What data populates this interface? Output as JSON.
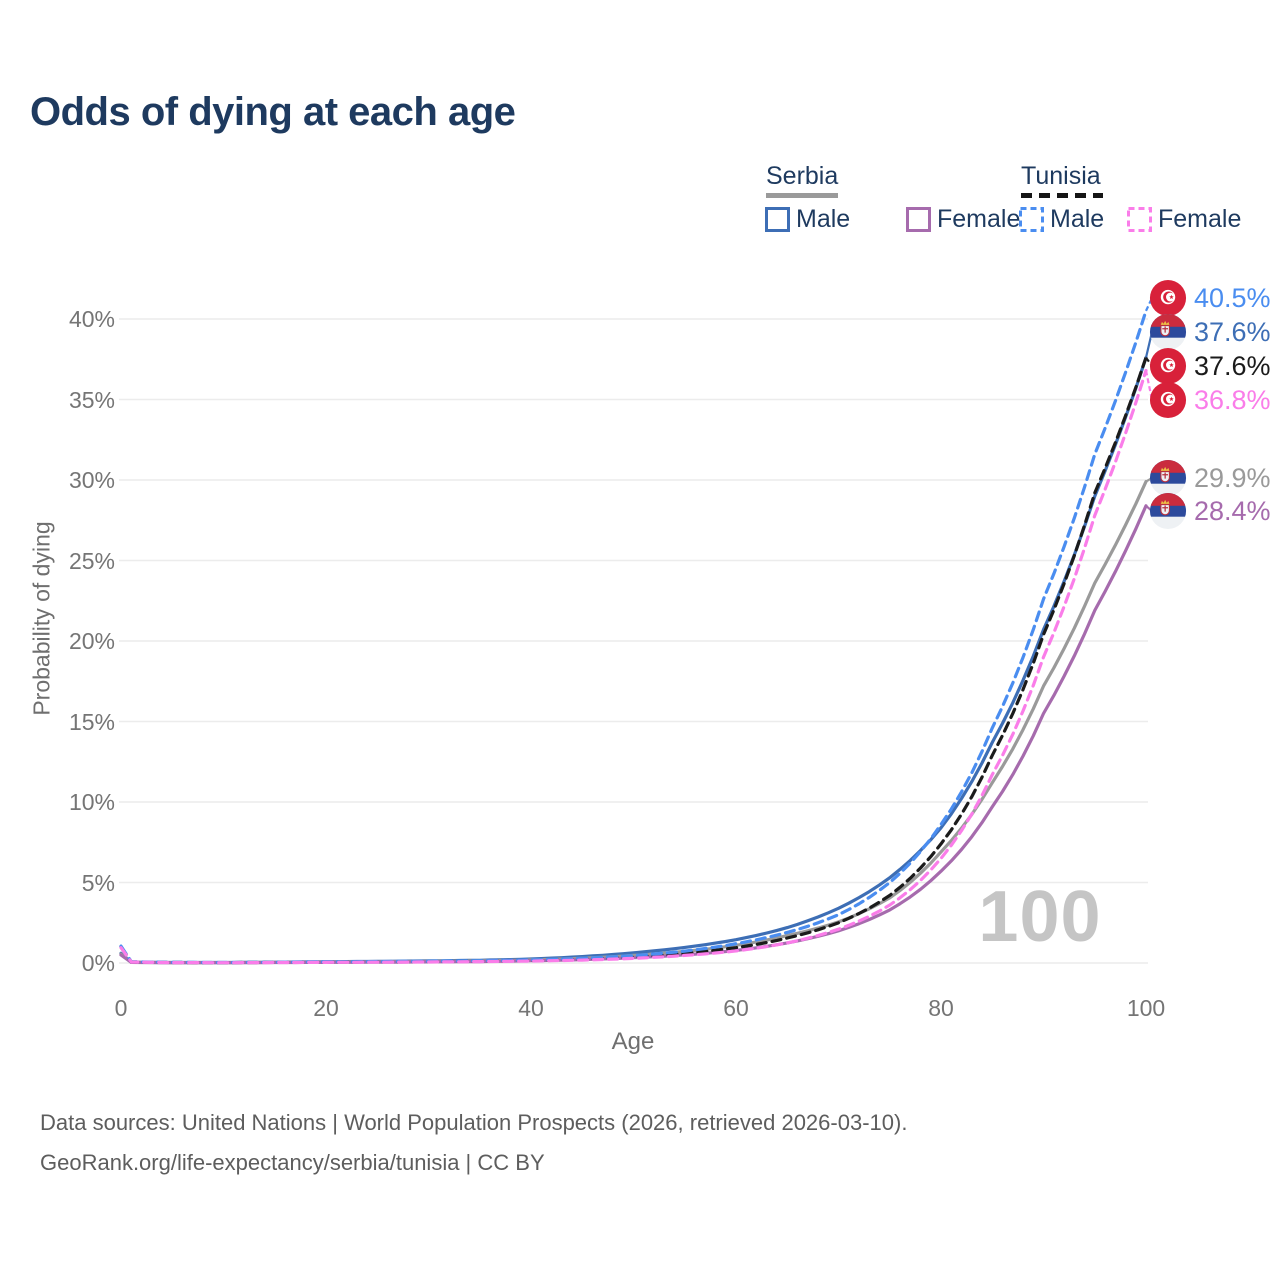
{
  "title": "Odds of dying at each age",
  "legend": {
    "groups": [
      {
        "name": "Serbia",
        "line_style": "solid",
        "swatch_color": "#9a9a9a",
        "items": [
          {
            "label": "Male",
            "color": "#3d6eb5",
            "style": "solid"
          },
          {
            "label": "Female",
            "color": "#a66bad",
            "style": "solid"
          }
        ]
      },
      {
        "name": "Tunisia",
        "line_style": "dashed",
        "swatch_color": "#151515",
        "items": [
          {
            "label": "Male",
            "color": "#4a8df0",
            "style": "dashed"
          },
          {
            "label": "Female",
            "color": "#fa7de9",
            "style": "dashed"
          }
        ]
      }
    ]
  },
  "chart_data": {
    "type": "line",
    "title": "Odds of dying at each age",
    "xlabel": "Age",
    "ylabel": "Probability of dying",
    "x_ticks": [
      0,
      20,
      40,
      60,
      80,
      100
    ],
    "y_ticks": [
      0,
      5,
      10,
      15,
      20,
      25,
      30,
      35,
      40
    ],
    "y_tick_suffix": "%",
    "xlim": [
      0,
      100
    ],
    "ylim": [
      0,
      42
    ],
    "grid": "horizontal",
    "legend_position": "top-right",
    "watermark": "100",
    "x": [
      0,
      1,
      5,
      10,
      15,
      20,
      25,
      30,
      35,
      40,
      45,
      50,
      55,
      60,
      65,
      70,
      75,
      80,
      85,
      90,
      95,
      100
    ],
    "series": [
      {
        "name": "Tunisia Male",
        "country": "Tunisia",
        "sex": "Male",
        "style": "dashed",
        "color": "#4a8df0",
        "end_value": 40.5,
        "end_label": "40.5%",
        "values": [
          1.05,
          0.08,
          0.04,
          0.03,
          0.05,
          0.07,
          0.09,
          0.11,
          0.14,
          0.19,
          0.29,
          0.46,
          0.74,
          1.2,
          1.9,
          3.0,
          5.0,
          8.6,
          14.6,
          22.6,
          31.6,
          40.5
        ]
      },
      {
        "name": "Serbia Male",
        "country": "Serbia",
        "sex": "Male",
        "style": "solid",
        "color": "#3d6eb5",
        "end_value": 37.6,
        "end_label": "37.6%",
        "values": [
          0.6,
          0.05,
          0.03,
          0.03,
          0.05,
          0.08,
          0.1,
          0.13,
          0.17,
          0.25,
          0.4,
          0.63,
          0.97,
          1.45,
          2.2,
          3.4,
          5.3,
          8.4,
          13.7,
          20.7,
          29.0,
          37.6
        ]
      },
      {
        "name": "Tunisia",
        "country": "Tunisia",
        "sex": "Both",
        "style": "dashed",
        "color": "#1b1b1b",
        "end_value": 37.6,
        "end_label": "37.6%",
        "values": [
          1.0,
          0.07,
          0.03,
          0.025,
          0.04,
          0.055,
          0.07,
          0.09,
          0.11,
          0.15,
          0.24,
          0.38,
          0.6,
          0.95,
          1.55,
          2.5,
          4.2,
          7.4,
          12.9,
          20.4,
          29.2,
          37.6
        ]
      },
      {
        "name": "Tunisia Female",
        "country": "Tunisia",
        "sex": "Female",
        "style": "dashed",
        "color": "#fa7de9",
        "end_value": 36.8,
        "end_label": "36.8%",
        "values": [
          0.95,
          0.06,
          0.025,
          0.02,
          0.03,
          0.04,
          0.05,
          0.065,
          0.085,
          0.12,
          0.18,
          0.29,
          0.47,
          0.75,
          1.25,
          2.1,
          3.6,
          6.5,
          11.7,
          19.0,
          27.8,
          36.8
        ]
      },
      {
        "name": "Serbia",
        "country": "Serbia",
        "sex": "Both",
        "style": "solid",
        "color": "#9a9a9a",
        "end_value": 29.9,
        "end_label": "29.9%",
        "values": [
          0.55,
          0.045,
          0.025,
          0.025,
          0.04,
          0.06,
          0.075,
          0.1,
          0.13,
          0.19,
          0.3,
          0.47,
          0.72,
          1.1,
          1.7,
          2.55,
          4.05,
          6.9,
          11.2,
          17.2,
          23.6,
          29.9
        ]
      },
      {
        "name": "Serbia Female",
        "country": "Serbia",
        "sex": "Female",
        "style": "solid",
        "color": "#a66bad",
        "end_value": 28.4,
        "end_label": "28.4%",
        "values": [
          0.5,
          0.04,
          0.02,
          0.02,
          0.03,
          0.04,
          0.05,
          0.07,
          0.09,
          0.14,
          0.21,
          0.33,
          0.51,
          0.78,
          1.25,
          2.0,
          3.3,
          5.7,
          9.7,
          15.5,
          21.9,
          28.4
        ]
      }
    ]
  },
  "footer": {
    "line1": "Data sources: United Nations | World Population Prospects (2026, retrieved 2026-03-10).",
    "line2": "GeoRank.org/life-expectancy/serbia/tunisia | CC BY"
  }
}
